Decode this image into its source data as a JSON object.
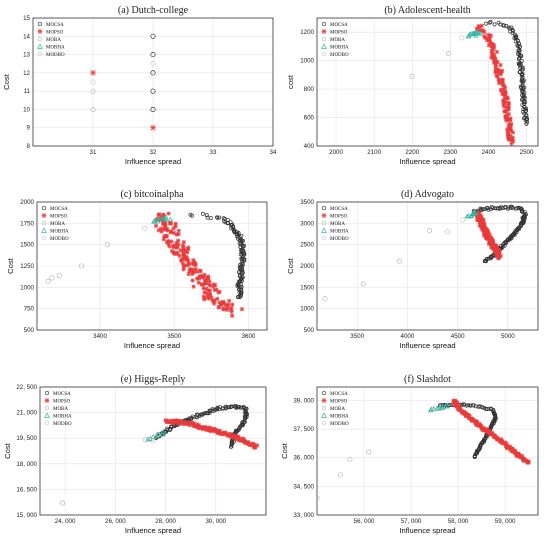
{
  "legend_labels": [
    "MOCSA",
    "MOPSO",
    "MOBA",
    "MOBHA",
    "MODBO"
  ],
  "colors": {
    "MOCSA": "#333333",
    "MOPSO": "#e83b3b",
    "MOBA": "#b9b9b9",
    "MOBHA": "#34b3a0",
    "MODBO": "#c9c9c9"
  },
  "chart_data": [
    {
      "type": "scatter",
      "title": "(a) Dutch-college",
      "xlabel": "Influence spread",
      "ylabel": "Cost",
      "xlim": [
        30,
        34
      ],
      "ylim": [
        8,
        15
      ],
      "xticks": [
        "31",
        "32",
        "33",
        "34"
      ],
      "yticks": [
        "8",
        "9",
        "10",
        "11",
        "12",
        "13",
        "14",
        "15"
      ],
      "legend": "top-left",
      "series": [
        {
          "name": "MOCSA",
          "points": [
            [
              32,
              14
            ],
            [
              32,
              13
            ],
            [
              32,
              12
            ],
            [
              32,
              11
            ],
            [
              32,
              10
            ]
          ]
        },
        {
          "name": "MOPSO",
          "points": [
            [
              31,
              12
            ],
            [
              32,
              9
            ]
          ]
        },
        {
          "name": "MOBA",
          "points": [
            [
              31,
              11
            ],
            [
              31,
              10
            ]
          ]
        },
        {
          "name": "MOBHA",
          "points": []
        },
        {
          "name": "MODBO",
          "points": [
            [
              31,
              11.5
            ],
            [
              32,
              12.5
            ]
          ]
        }
      ]
    },
    {
      "type": "scatter",
      "title": "(b) Adolescent-health",
      "xlabel": "Influence spread",
      "ylabel": "cost",
      "xlim": [
        1950,
        2530
      ],
      "ylim": [
        400,
        1300
      ],
      "xticks": [
        "2000",
        "2100",
        "2200",
        "2300",
        "2400",
        "2500"
      ],
      "yticks": [
        "400",
        "600",
        "800",
        "1000",
        "1200"
      ],
      "legend": "top-left",
      "series": [
        {
          "name": "MOCSA",
          "curve": [
            [
              2395,
              1270
            ],
            [
              2430,
              1255
            ],
            [
              2455,
              1230
            ],
            [
              2470,
              1180
            ],
            [
              2478,
              1100
            ],
            [
              2483,
              1000
            ],
            [
              2487,
              900
            ],
            [
              2490,
              800
            ],
            [
              2493,
              700
            ],
            [
              2496,
              620
            ],
            [
              2498,
              560
            ]
          ],
          "n": 110,
          "spread": [
            5,
            12
          ]
        },
        {
          "name": "MOPSO",
          "curve": [
            [
              2375,
              1240
            ],
            [
              2395,
              1180
            ],
            [
              2408,
              1100
            ],
            [
              2418,
              1000
            ],
            [
              2428,
              900
            ],
            [
              2438,
              800
            ],
            [
              2446,
              700
            ],
            [
              2452,
              600
            ],
            [
              2457,
              500
            ],
            [
              2461,
              420
            ]
          ],
          "n": 140,
          "spread": [
            8,
            30
          ]
        },
        {
          "name": "MOBA",
          "points": [
            [
              2295,
              1050
            ],
            [
              2200,
              890
            ]
          ]
        },
        {
          "name": "MOBHA",
          "curve": [
            [
              2345,
              1175
            ],
            [
              2380,
              1200
            ]
          ],
          "n": 14,
          "spread": [
            6,
            10
          ]
        },
        {
          "name": "MODBO",
          "points": [
            [
              2330,
              1160
            ]
          ]
        }
      ]
    },
    {
      "type": "scatter",
      "title": "(c) bitcoinalpha",
      "xlabel": "Influence spread",
      "ylabel": "Cost",
      "xlim": [
        3315,
        3625
      ],
      "ylim": [
        500,
        2000
      ],
      "xticks": [
        "3400",
        "3500",
        "3600"
      ],
      "yticks": [
        "500",
        "750",
        "1000",
        "1250",
        "1500",
        "1750",
        "2000"
      ],
      "legend": "top-left",
      "series": [
        {
          "name": "MOCSA",
          "curve": [
            [
              3515,
              1850
            ],
            [
              3545,
              1840
            ],
            [
              3565,
              1800
            ],
            [
              3580,
              1700
            ],
            [
              3588,
              1580
            ],
            [
              3592,
              1450
            ],
            [
              3592,
              1300
            ],
            [
              3590,
              1150
            ],
            [
              3588,
              1000
            ],
            [
              3588,
              880
            ]
          ],
          "n": 120,
          "spread": [
            3,
            20
          ]
        },
        {
          "name": "MOPSO",
          "curve": [
            [
              3480,
              1840
            ],
            [
              3490,
              1700
            ],
            [
              3500,
              1550
            ],
            [
              3510,
              1400
            ],
            [
              3522,
              1250
            ],
            [
              3535,
              1100
            ],
            [
              3548,
              950
            ],
            [
              3560,
              830
            ],
            [
              3572,
              760
            ],
            [
              3585,
              725
            ]
          ],
          "n": 190,
          "spread": [
            12,
            70
          ]
        },
        {
          "name": "MOBA",
          "points": [
            [
              3410,
              1500
            ],
            [
              3375,
              1250
            ],
            [
              3345,
              1140
            ],
            [
              3335,
              1110
            ],
            [
              3330,
              1070
            ]
          ]
        },
        {
          "name": "MOBHA",
          "curve": [
            [
              3470,
              1760
            ],
            [
              3495,
              1820
            ]
          ],
          "n": 10,
          "spread": [
            4,
            20
          ]
        },
        {
          "name": "MODBO",
          "points": [
            [
              3460,
              1690
            ]
          ]
        }
      ]
    },
    {
      "type": "scatter",
      "title": "(d) Advogato",
      "xlabel": "Influence spread",
      "ylabel": "Cost",
      "xlim": [
        3100,
        5300
      ],
      "ylim": [
        500,
        3500
      ],
      "xticks": [
        "3500",
        "4000",
        "4500",
        "5000"
      ],
      "yticks": [
        "500",
        "1000",
        "1500",
        "2000",
        "2500",
        "3000",
        "3500"
      ],
      "legend": "top-left",
      "series": [
        {
          "name": "MOCSA",
          "curve": [
            [
              4650,
              3250
            ],
            [
              4750,
              3330
            ],
            [
              4850,
              3360
            ],
            [
              5000,
              3370
            ],
            [
              5120,
              3350
            ],
            [
              5170,
              3200
            ],
            [
              5140,
              3000
            ],
            [
              5080,
              2800
            ],
            [
              5000,
              2600
            ],
            [
              4920,
              2400
            ],
            [
              4850,
              2250
            ],
            [
              4760,
              2100
            ]
          ],
          "n": 130,
          "spread": [
            12,
            30
          ]
        },
        {
          "name": "MOPSO",
          "curve": [
            [
              4700,
              3200
            ],
            [
              4740,
              3000
            ],
            [
              4780,
              2800
            ],
            [
              4820,
              2600
            ],
            [
              4860,
              2450
            ],
            [
              4900,
              2300
            ],
            [
              4930,
              2230
            ]
          ],
          "n": 140,
          "spread": [
            25,
            60
          ]
        },
        {
          "name": "MOBA",
          "points": [
            [
              3180,
              1230
            ],
            [
              3560,
              1580
            ],
            [
              3920,
              2110
            ],
            [
              4220,
              2830
            ],
            [
              4400,
              2800
            ]
          ]
        },
        {
          "name": "MOBHA",
          "curve": [
            [
              4600,
              3150
            ],
            [
              4680,
              3260
            ]
          ],
          "n": 10,
          "spread": [
            15,
            30
          ]
        },
        {
          "name": "MODBO",
          "points": [
            [
              4550,
              3080
            ]
          ]
        }
      ]
    },
    {
      "type": "scatter",
      "title": "(e) Higgs-Reply",
      "xlabel": "Influence spread",
      "ylabel": "Cost",
      "xlim": [
        23000,
        32000
      ],
      "ylim": [
        15000,
        22500
      ],
      "xticks": [
        "24, 000",
        "26, 000",
        "28, 000",
        "30, 000"
      ],
      "yticks": [
        "15, 000",
        "16, 500",
        "18, 000",
        "19, 500",
        "21, 000",
        "22, 500"
      ],
      "legend": "top-left",
      "series": [
        {
          "name": "MOCSA",
          "curve": [
            [
              27600,
              19500
            ],
            [
              28200,
              20100
            ],
            [
              28900,
              20600
            ],
            [
              29600,
              21000
            ],
            [
              30300,
              21300
            ],
            [
              30900,
              21350
            ],
            [
              31200,
              21200
            ],
            [
              31200,
              20700
            ],
            [
              31000,
              20200
            ],
            [
              30800,
              19800
            ],
            [
              30700,
              19400
            ],
            [
              30600,
              19000
            ]
          ],
          "n": 140,
          "spread": [
            50,
            70
          ]
        },
        {
          "name": "MOPSO",
          "curve": [
            [
              28000,
              20500
            ],
            [
              28800,
              20400
            ],
            [
              29600,
              20100
            ],
            [
              30300,
              19800
            ],
            [
              30900,
              19500
            ],
            [
              31300,
              19200
            ],
            [
              31600,
              19000
            ]
          ],
          "n": 160,
          "spread": [
            60,
            90
          ]
        },
        {
          "name": "MOBA",
          "points": [
            [
              23900,
              15700
            ],
            [
              27200,
              19400
            ],
            [
              27500,
              19350
            ]
          ]
        },
        {
          "name": "MOBHA",
          "curve": [
            [
              27300,
              19450
            ],
            [
              28000,
              19900
            ]
          ],
          "n": 8,
          "spread": [
            50,
            60
          ]
        },
        {
          "name": "MODBO",
          "points": [
            [
              27700,
              19700
            ]
          ]
        }
      ]
    },
    {
      "type": "scatter",
      "title": "(f) Slashdot",
      "xlabel": "Influence spread",
      "ylabel": "Cost",
      "xlim": [
        55000,
        59700
      ],
      "ylim": [
        33000,
        39700
      ],
      "xticks": [
        "56, 000",
        "57, 000",
        "58, 000",
        "59, 000"
      ],
      "yticks": [
        "33, 000",
        "34, 500",
        "36, 000",
        "37, 500",
        "39, 000"
      ],
      "legend": "top-left",
      "series": [
        {
          "name": "MOCSA",
          "curve": [
            [
              57600,
              38700
            ],
            [
              58000,
              38800
            ],
            [
              58400,
              38700
            ],
            [
              58750,
              38500
            ],
            [
              58800,
              38100
            ],
            [
              58700,
              37600
            ],
            [
              58600,
              37100
            ],
            [
              58500,
              36700
            ],
            [
              58400,
              36300
            ],
            [
              58350,
              36000
            ]
          ],
          "n": 110,
          "spread": [
            15,
            40
          ]
        },
        {
          "name": "MOPSO",
          "curve": [
            [
              57900,
              39000
            ],
            [
              58050,
              38500
            ],
            [
              58300,
              38000
            ],
            [
              58550,
              37500
            ],
            [
              58850,
              37000
            ],
            [
              59100,
              36500
            ],
            [
              59300,
              36100
            ],
            [
              59500,
              35700
            ]
          ],
          "n": 170,
          "spread": [
            30,
            70
          ]
        },
        {
          "name": "MOBA",
          "points": [
            [
              55000,
              33900
            ],
            [
              55500,
              35100
            ],
            [
              55700,
              35900
            ],
            [
              56100,
              36300
            ]
          ]
        },
        {
          "name": "MOBHA",
          "curve": [
            [
              57400,
              38500
            ],
            [
              57800,
              38700
            ]
          ],
          "n": 10,
          "spread": [
            20,
            30
          ]
        },
        {
          "name": "MODBO",
          "points": [
            [
              57500,
              38600
            ]
          ]
        }
      ]
    }
  ]
}
